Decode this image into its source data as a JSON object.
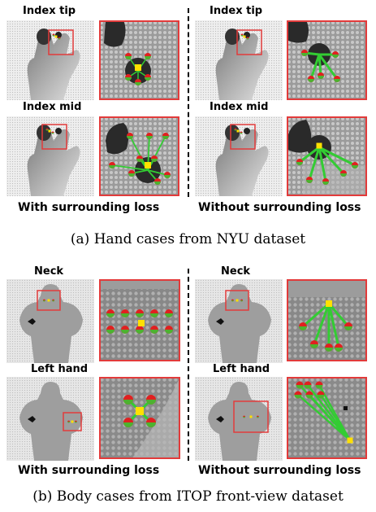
{
  "figure": {
    "panel_a": {
      "caption": "(a)  Hand cases from NYU dataset",
      "left_column_caption": "With surrounding loss",
      "right_column_caption": "Without surrounding loss",
      "row_labels": [
        "Index tip",
        "Index mid",
        "Index tip",
        "Index mid"
      ]
    },
    "panel_b": {
      "caption": "(b)  Body cases from ITOP front-view dataset",
      "left_column_caption": "With surrounding loss",
      "right_column_caption": "Without surrounding loss",
      "row_labels": [
        "Neck",
        "Left hand",
        "Neck",
        "Left hand"
      ]
    }
  },
  "colors": {
    "zoom_frame": "#e23b3b",
    "keypoint_red": "#e02020",
    "offset_green": "#33cc33",
    "target_yellow": "#ffe000",
    "depth_dark": "#2a2a2a",
    "background_gray": "#d9d9d9"
  }
}
